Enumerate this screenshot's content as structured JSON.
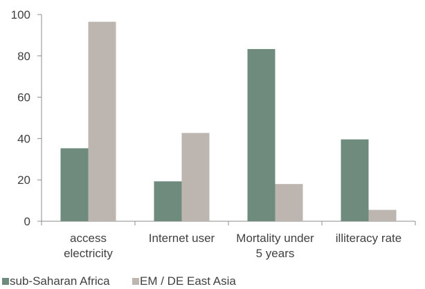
{
  "chart_data": {
    "type": "bar",
    "categories": [
      [
        "access",
        "electricity"
      ],
      [
        "Internet user"
      ],
      [
        "Mortality under",
        "5 years"
      ],
      [
        "illiteracy rate"
      ]
    ],
    "series": [
      {
        "name": "sub-Saharan Africa",
        "values": [
          35.3,
          19.3,
          83.3,
          39.6
        ],
        "color": "#6e8b7d"
      },
      {
        "name": "EM / DE East Asia",
        "values": [
          96.5,
          42.7,
          18.0,
          5.5
        ],
        "color": "#bcb5b0"
      }
    ],
    "title": "",
    "xlabel": "",
    "ylabel": "",
    "ylim": [
      0,
      100
    ],
    "yticks": [
      0,
      20,
      40,
      60,
      80,
      100
    ],
    "grid": false,
    "legend": "bottom-left"
  }
}
